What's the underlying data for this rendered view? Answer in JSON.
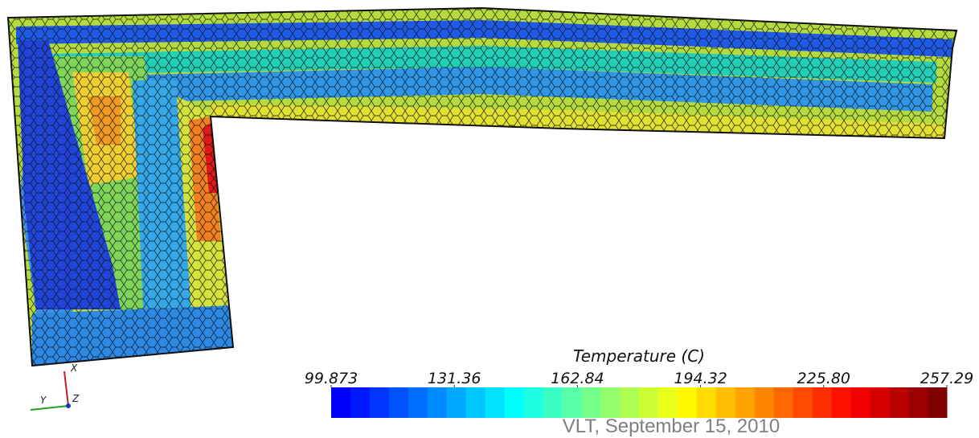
{
  "colorbar": {
    "title": "Temperature (C)",
    "lim": [
      99.873,
      257.29
    ],
    "ticks": [
      99.873,
      131.36,
      162.84,
      194.32,
      {
        "value": 225.8,
        "label": "225.80"
      },
      257.29
    ]
  },
  "axes_triad": {
    "x": "X",
    "y": "Y",
    "z": "Z"
  },
  "footer": "VLT, September 15, 2010"
}
